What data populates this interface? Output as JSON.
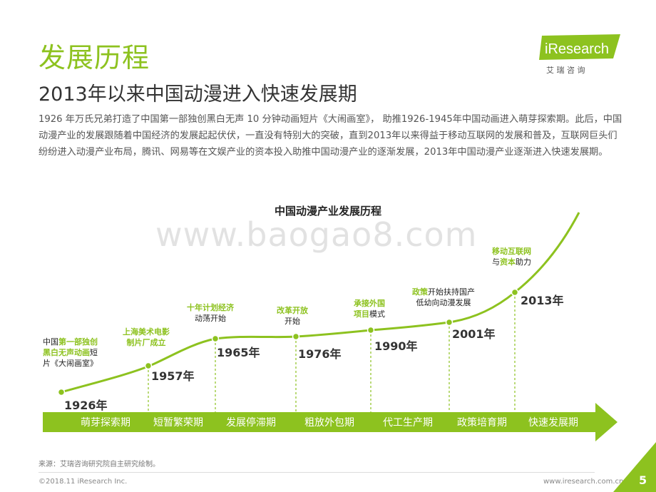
{
  "header": {
    "title": "发展历程",
    "subtitle": "2013年以来中国动漫进入快速发展期",
    "intro": "1926 年万氏兄弟打造了中国第一部独创黑白无声 10 分钟动画短片《大闹画室》， 助推1926-1945年中国动画进入萌芽探索期。此后，中国动漫产业的发展跟随着中国经济的发展起起伏伏，一直没有特别大的突破，直到2013年以来得益于移动互联网的发展和普及，互联网巨头们纷纷进入动漫产业布局，腾讯、网易等在文娱产业的资本投入助推中国动漫产业的逐渐发展，2013年中国动漫产业逐渐进入快速发展期。"
  },
  "logo": {
    "brand": "iResearch",
    "cn": "艾  瑞  咨  询"
  },
  "watermark": "www.baogao8.com",
  "diagram": {
    "title": "中国动漫产业发展历程",
    "milestones": [
      {
        "year": "1926年",
        "parts": [
          [
            "中国",
            ""
          ],
          [
            "第一部独创",
            "g"
          ],
          [
            "\n",
            ""
          ],
          [
            "黑白无声动画",
            "g"
          ],
          [
            "短",
            ""
          ],
          [
            "\n",
            ""
          ],
          [
            "片《大闹画室》",
            ""
          ]
        ]
      },
      {
        "year": "1957年",
        "parts": [
          [
            "上海美术电影",
            "g"
          ],
          [
            "\n",
            ""
          ],
          [
            "制片厂成立",
            "g"
          ]
        ]
      },
      {
        "year": "1965年",
        "parts": [
          [
            "十年计划经济",
            "g"
          ],
          [
            "\n",
            ""
          ],
          [
            "动荡开始",
            ""
          ]
        ]
      },
      {
        "year": "1976年",
        "parts": [
          [
            "改革开放",
            "g"
          ],
          [
            "\n",
            ""
          ],
          [
            "开始",
            ""
          ]
        ]
      },
      {
        "year": "1990年",
        "parts": [
          [
            "承接外国",
            "g"
          ],
          [
            "\n",
            ""
          ],
          [
            "项目",
            "g"
          ],
          [
            "模式",
            ""
          ]
        ]
      },
      {
        "year": "2001年",
        "parts": [
          [
            "政策",
            "g"
          ],
          [
            "开始扶持国产",
            ""
          ],
          [
            "\n",
            ""
          ],
          [
            "低幼向动漫发展",
            ""
          ]
        ]
      },
      {
        "year": "2013年",
        "parts": [
          [
            "移动互联网",
            "g"
          ],
          [
            "\n",
            ""
          ],
          [
            "与",
            ""
          ],
          [
            "资本",
            "g"
          ],
          [
            "助力",
            ""
          ]
        ]
      }
    ],
    "phases": [
      "萌芽探索期",
      "短暂繁荣期",
      "发展停滞期",
      "粗放外包期",
      "代工生产期",
      "政策培育期",
      "快速发展期"
    ],
    "colors": {
      "accent": "#8dc21f",
      "dash": "#8dc21f"
    }
  },
  "footer": {
    "source": "来源：艾瑞咨询研究院自主研究绘制。",
    "copyright": "©2018.11 iResearch Inc.",
    "website": "www.iresearch.com.cn",
    "page": "5"
  }
}
